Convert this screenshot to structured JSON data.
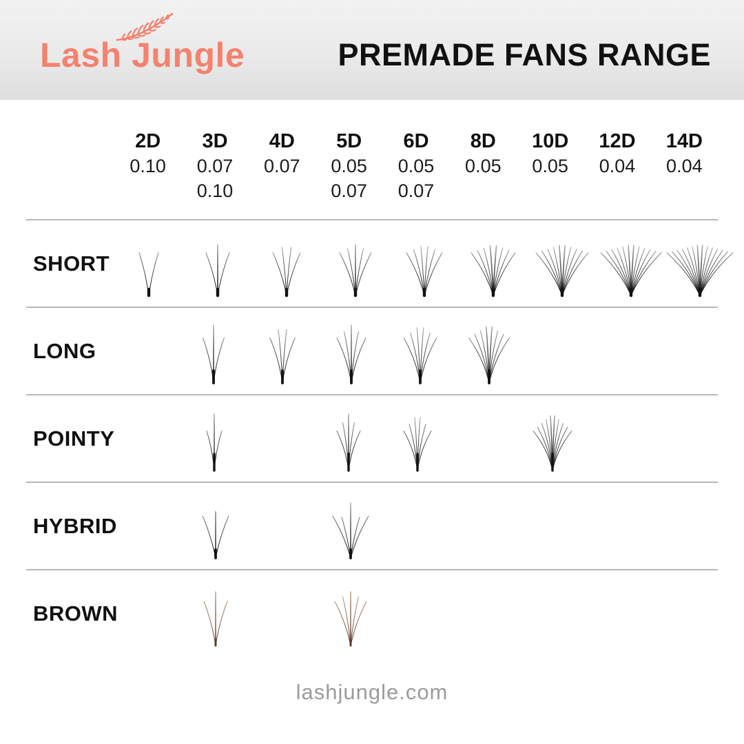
{
  "header": {
    "logo_text": "Lash Jungle",
    "title": "PREMADE FANS RANGE",
    "brand_color": "#f4826e"
  },
  "columns": [
    {
      "dim": "2D",
      "thicknesses": [
        "0.10"
      ]
    },
    {
      "dim": "3D",
      "thicknesses": [
        "0.07",
        "0.10"
      ]
    },
    {
      "dim": "4D",
      "thicknesses": [
        "0.07"
      ]
    },
    {
      "dim": "5D",
      "thicknesses": [
        "0.05",
        "0.07"
      ]
    },
    {
      "dim": "6D",
      "thicknesses": [
        "0.05",
        "0.07"
      ]
    },
    {
      "dim": "8D",
      "thicknesses": [
        "0.05"
      ]
    },
    {
      "dim": "10D",
      "thicknesses": [
        "0.05"
      ]
    },
    {
      "dim": "12D",
      "thicknesses": [
        "0.04"
      ]
    },
    {
      "dim": "14D",
      "thicknesses": [
        "0.04"
      ]
    }
  ],
  "rows": [
    {
      "label": "SHORT",
      "style": "short",
      "available_dims": [
        "2D",
        "3D",
        "4D",
        "5D",
        "6D",
        "8D",
        "10D",
        "12D",
        "14D"
      ],
      "lash_color": {
        "base": "#121212",
        "tip": "#b5b5b5"
      }
    },
    {
      "label": "LONG",
      "style": "long",
      "available_dims": [
        "3D",
        "4D",
        "5D",
        "6D",
        "8D"
      ],
      "lash_color": {
        "base": "#121212",
        "tip": "#b5b5b5"
      }
    },
    {
      "label": "POINTY",
      "style": "pointy",
      "available_dims": [
        "3D",
        "5D",
        "6D",
        "10D"
      ],
      "lash_color": {
        "base": "#121212",
        "tip": "#b5b5b5"
      }
    },
    {
      "label": "HYBRID",
      "style": "hybrid",
      "available_dims": [
        "3D",
        "5D"
      ],
      "lash_color": {
        "base": "#121212",
        "tip": "#b5b5b5"
      }
    },
    {
      "label": "BROWN",
      "style": "brown",
      "available_dims": [
        "3D",
        "5D"
      ],
      "lash_color": {
        "base": "#5e3a24",
        "tip": "#cbab8e"
      }
    }
  ],
  "footer": {
    "website": "lashjungle.com"
  }
}
